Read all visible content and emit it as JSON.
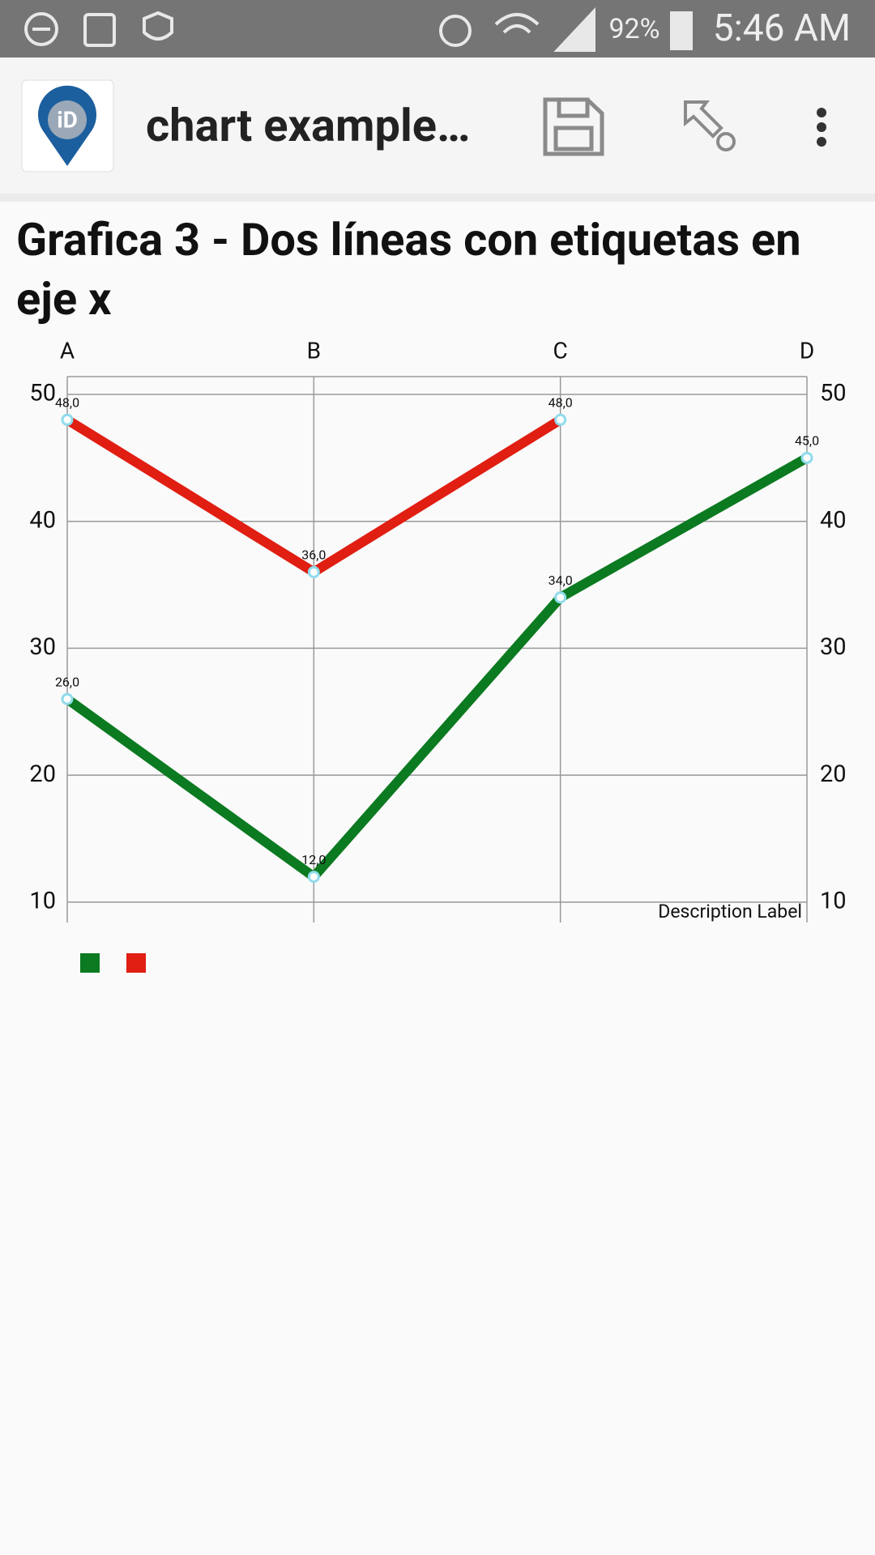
{
  "status_bar": {
    "battery": "92%",
    "time": "5:46 AM"
  },
  "app_bar": {
    "title": "chart example…"
  },
  "chart_data": {
    "type": "line",
    "title": "Grafica 3 - Dos líneas con etiquetas en eje x",
    "categories": [
      "A",
      "B",
      "C",
      "D"
    ],
    "series": [
      {
        "color": "#0b7a20",
        "values": [
          26,
          12,
          34,
          45
        ],
        "value_labels": [
          "26,0",
          "12,0",
          "34,0",
          "45,0"
        ]
      },
      {
        "color": "#e01e12",
        "values": [
          48,
          36,
          48,
          null
        ],
        "value_labels": [
          "48,0",
          "36,0",
          "48,0",
          null
        ]
      }
    ],
    "ylim": [
      8.4,
      51.4
    ],
    "yticks": [
      10,
      20,
      30,
      40,
      50
    ],
    "y2lim": [
      8.4,
      51.4
    ],
    "y2ticks": [
      10,
      20,
      30,
      40,
      50
    ],
    "description": "Description Label",
    "grid": true
  }
}
